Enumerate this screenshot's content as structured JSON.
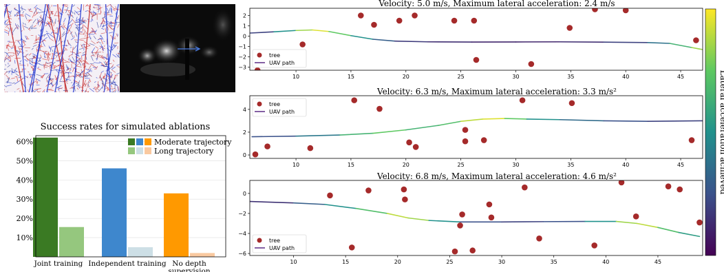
{
  "images": {
    "event_frame": "event-camera-frame",
    "depth_frame": "depth-estimate-frame",
    "flow_arrow": "arrow-right-icon"
  },
  "colors": {
    "moderate": [
      "#3a7a23",
      "#3e87cd",
      "#ff9900"
    ],
    "long": [
      "#95c77e",
      "#cddfe6",
      "#f9c9a0"
    ],
    "tree": "#a52a2a",
    "path_legend": "#5b2a86"
  },
  "bar_chart": {
    "title": "Success rates for simulated ablations",
    "legend": [
      "Moderate trajectory",
      "Long trajectory"
    ],
    "y_ticks": [
      "10%",
      "20%",
      "30%",
      "40%",
      "50%",
      "60%"
    ]
  },
  "trajectory_legend": {
    "tree": "tree",
    "path": "UAV path"
  },
  "colorbar_label": "Lateral acceleration achieved",
  "chart_data": [
    {
      "type": "bar",
      "title": "Success rates for simulated ablations",
      "categories": [
        "Joint training",
        "Independent training",
        "No depth supervision"
      ],
      "series": [
        {
          "name": "Moderate trajectory",
          "values": [
            62,
            46,
            33
          ]
        },
        {
          "name": "Long trajectory",
          "values": [
            15.5,
            5,
            2
          ]
        }
      ],
      "ylim": [
        0,
        63
      ],
      "y_unit": "%",
      "legend_position": "top-right"
    },
    {
      "type": "scatter",
      "title": "Velocity: 5.0 m/s, Maximum lateral acceleration: 2.4 m/s",
      "xlim": [
        5.8,
        47
      ],
      "ylim": [
        -3.3,
        2.7
      ],
      "x_ticks": [
        10,
        15,
        20,
        25,
        30,
        35,
        40,
        45
      ],
      "y_ticks": [
        -3,
        -2,
        -1,
        0,
        1,
        2
      ],
      "trees": [
        [
          6.5,
          -3.3
        ],
        [
          10.6,
          -0.8
        ],
        [
          15.9,
          2.0
        ],
        [
          17.1,
          1.1
        ],
        [
          19.4,
          1.5
        ],
        [
          20.8,
          2.0
        ],
        [
          24.4,
          1.5
        ],
        [
          26.2,
          1.5
        ],
        [
          26.4,
          -2.3
        ],
        [
          31.4,
          -2.7
        ],
        [
          34.9,
          0.8
        ],
        [
          37.2,
          2.6
        ],
        [
          40.0,
          2.5
        ],
        [
          46.4,
          -0.4
        ]
      ],
      "path": [
        [
          5.8,
          0.3
        ],
        [
          8,
          0.42
        ],
        [
          10,
          0.55
        ],
        [
          11.5,
          0.6
        ],
        [
          13,
          0.45
        ],
        [
          15,
          0.05
        ],
        [
          17,
          -0.3
        ],
        [
          19,
          -0.48
        ],
        [
          22,
          -0.55
        ],
        [
          26,
          -0.57
        ],
        [
          30,
          -0.56
        ],
        [
          34,
          -0.55
        ],
        [
          38,
          -0.58
        ],
        [
          42,
          -0.62
        ],
        [
          44,
          -0.7
        ],
        [
          46,
          -1.1
        ],
        [
          47,
          -1.3
        ]
      ],
      "path_accel": [
        0.1,
        0.3,
        0.7,
        1.0,
        0.9,
        0.6,
        0.4,
        0.2,
        0.15,
        0.12,
        0.1,
        0.12,
        0.15,
        0.25,
        0.5,
        0.8,
        0.9
      ],
      "legend_position": "bottom-left"
    },
    {
      "type": "scatter",
      "title": "Velocity: 6.3 m/s, Maximum lateral acceleration: 3.3 m/s²",
      "xlim": [
        5.8,
        47
      ],
      "ylim": [
        -0.3,
        5.2
      ],
      "x_ticks": [
        10,
        15,
        20,
        25,
        30,
        35,
        40,
        45
      ],
      "y_ticks": [
        0,
        2,
        4
      ],
      "trees": [
        [
          6.3,
          0.05
        ],
        [
          7.4,
          0.75
        ],
        [
          11.3,
          0.6
        ],
        [
          15.3,
          4.8
        ],
        [
          17.6,
          4.05
        ],
        [
          20.3,
          1.1
        ],
        [
          20.9,
          0.7
        ],
        [
          25.4,
          2.2
        ],
        [
          25.4,
          1.2
        ],
        [
          27.1,
          1.3
        ],
        [
          30.6,
          4.8
        ],
        [
          35.1,
          4.55
        ],
        [
          46.0,
          1.3
        ]
      ],
      "path": [
        [
          6,
          1.6
        ],
        [
          10,
          1.65
        ],
        [
          14,
          1.75
        ],
        [
          17,
          1.9
        ],
        [
          20,
          2.2
        ],
        [
          23,
          2.6
        ],
        [
          25,
          2.95
        ],
        [
          27,
          3.15
        ],
        [
          29,
          3.2
        ],
        [
          31,
          3.15
        ],
        [
          34,
          3.1
        ],
        [
          38,
          3.0
        ],
        [
          42,
          2.95
        ],
        [
          47,
          3.0
        ]
      ],
      "path_accel": [
        0.2,
        0.3,
        0.5,
        0.8,
        0.7,
        0.6,
        0.8,
        1.0,
        0.9,
        0.6,
        0.4,
        0.3,
        0.2,
        0.2
      ],
      "legend_position": "top-left"
    },
    {
      "type": "scatter",
      "title": "Velocity: 6.8 m/s, Maximum lateral acceleration: 4.6 m/s²",
      "xlim": [
        5.8,
        49.3
      ],
      "ylim": [
        -6.2,
        1.3
      ],
      "x_ticks": [
        10,
        15,
        20,
        25,
        30,
        35,
        40,
        45
      ],
      "y_ticks": [
        -6,
        -4,
        -2,
        0
      ],
      "trees": [
        [
          13.5,
          -0.2
        ],
        [
          15.6,
          -5.4
        ],
        [
          17.2,
          0.3
        ],
        [
          20.6,
          0.4
        ],
        [
          20.7,
          -0.6
        ],
        [
          25.5,
          -5.8
        ],
        [
          26.2,
          -2.1
        ],
        [
          26.0,
          -3.2
        ],
        [
          27.2,
          -5.7
        ],
        [
          28.8,
          -1.1
        ],
        [
          29.0,
          -2.4
        ],
        [
          32.2,
          0.6
        ],
        [
          33.6,
          -4.5
        ],
        [
          38.9,
          -5.2
        ],
        [
          41.5,
          1.1
        ],
        [
          42.9,
          -2.3
        ],
        [
          46.0,
          0.7
        ],
        [
          47.1,
          0.4
        ],
        [
          49.0,
          -2.9
        ]
      ],
      "path": [
        [
          5.8,
          -0.8
        ],
        [
          10,
          -0.95
        ],
        [
          13,
          -1.1
        ],
        [
          16,
          -1.5
        ],
        [
          19,
          -2.0
        ],
        [
          21,
          -2.45
        ],
        [
          23,
          -2.7
        ],
        [
          26,
          -2.85
        ],
        [
          30,
          -2.85
        ],
        [
          34,
          -2.82
        ],
        [
          38,
          -2.8
        ],
        [
          41,
          -2.8
        ],
        [
          43,
          -3.0
        ],
        [
          45,
          -3.4
        ],
        [
          47,
          -3.9
        ],
        [
          49,
          -4.3
        ]
      ],
      "path_accel": [
        0.1,
        0.2,
        0.4,
        0.6,
        0.8,
        1.0,
        0.7,
        0.3,
        0.2,
        0.2,
        0.3,
        0.7,
        1.0,
        0.8,
        0.6,
        0.5
      ],
      "legend_position": "bottom-left"
    }
  ]
}
